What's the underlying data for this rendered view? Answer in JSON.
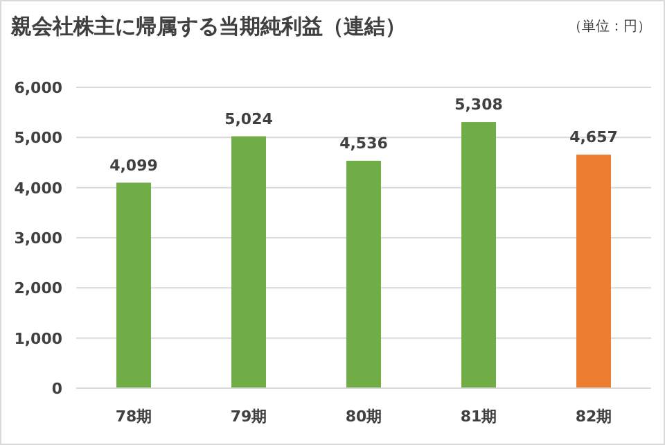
{
  "chart_data": {
    "type": "bar",
    "title": "親会社株主に帰属する当期純利益（連結）",
    "annotations": [
      "（単位：円）"
    ],
    "categories": [
      "78期",
      "79期",
      "80期",
      "81期",
      "82期"
    ],
    "values": [
      4099,
      5024,
      4536,
      5308,
      4657
    ],
    "value_labels": [
      "4,099",
      "5,024",
      "4,536",
      "5,308",
      "4,657"
    ],
    "colors": [
      "#70ad47",
      "#70ad47",
      "#70ad47",
      "#70ad47",
      "#ed7d31"
    ],
    "ylim": [
      0,
      6000
    ],
    "yticks": [
      0,
      {
        "value": 1000,
        "label": "1,000"
      },
      {
        "value": 2000,
        "label": "2,000"
      },
      {
        "value": 3000,
        "label": "3,000"
      },
      {
        "value": 4000,
        "label": "4,000"
      },
      {
        "value": 5000,
        "label": "5,000"
      },
      {
        "value": 6000,
        "label": "6,000"
      }
    ],
    "grid": "y"
  }
}
